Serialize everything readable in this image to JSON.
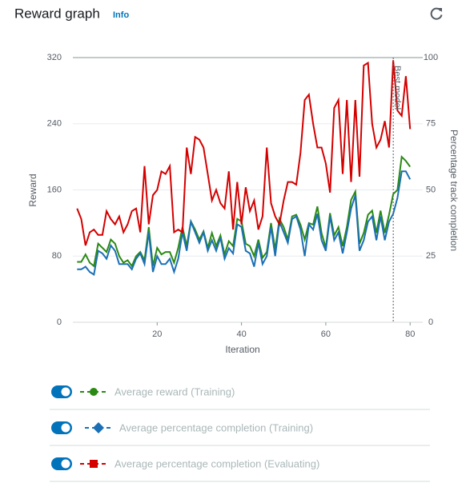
{
  "header": {
    "title": "Reward graph",
    "info": "Info"
  },
  "chart_data": {
    "type": "line",
    "xlabel": "Iteration",
    "ylabel": "Reward",
    "y2label": "Percentage track completion",
    "x": [
      1,
      2,
      3,
      4,
      5,
      6,
      7,
      8,
      9,
      10,
      11,
      12,
      13,
      14,
      15,
      16,
      17,
      18,
      19,
      20,
      21,
      22,
      23,
      24,
      25,
      26,
      27,
      28,
      29,
      30,
      31,
      32,
      33,
      34,
      35,
      36,
      37,
      38,
      39,
      40,
      41,
      42,
      43,
      44,
      45,
      46,
      47,
      48,
      49,
      50,
      51,
      52,
      53,
      54,
      55,
      56,
      57,
      58,
      59,
      60,
      61,
      62,
      63,
      64,
      65,
      66,
      67,
      68,
      69,
      70,
      71,
      72,
      73,
      74,
      75,
      76,
      77,
      78,
      79,
      80
    ],
    "xlim": [
      0,
      83
    ],
    "xticks": [
      20,
      40,
      60,
      80
    ],
    "ylim": [
      0,
      320
    ],
    "yticks": [
      0,
      80,
      160,
      240,
      320
    ],
    "y2lim": [
      0,
      100
    ],
    "y2ticks": [
      0,
      25,
      50,
      75,
      100
    ],
    "grid": true,
    "series": [
      {
        "name": "Average reward (Training)",
        "color": "#2b8a14",
        "marker": "circle",
        "axis": "y",
        "values": [
          73,
          73,
          82,
          72,
          68,
          95,
          90,
          85,
          100,
          95,
          80,
          72,
          75,
          68,
          80,
          85,
          75,
          115,
          68,
          90,
          82,
          85,
          85,
          72,
          90,
          115,
          92,
          122,
          112,
          100,
          110,
          90,
          108,
          92,
          105,
          82,
          98,
          92,
          125,
          122,
          95,
          92,
          80,
          100,
          78,
          85,
          120,
          88,
          125,
          115,
          100,
          128,
          130,
          118,
          100,
          120,
          118,
          140,
          108,
          90,
          132,
          105,
          115,
          92,
          115,
          148,
          158,
          95,
          108,
          130,
          135,
          108,
          135,
          108,
          130,
          155,
          160,
          200,
          195,
          188
        ]
      },
      {
        "name": "Average percentage completion (Training)",
        "color": "#1b70b5",
        "marker": "diamond",
        "axis": "y2",
        "values": [
          20,
          20,
          21,
          19,
          18,
          27,
          26,
          24,
          29,
          27,
          22,
          22,
          22,
          20,
          24,
          26,
          22,
          34,
          19,
          25,
          22,
          22,
          24,
          19,
          24,
          34,
          27,
          38,
          34,
          30,
          34,
          27,
          31,
          27,
          32,
          24,
          28,
          26,
          37,
          36,
          27,
          26,
          21,
          30,
          22,
          25,
          36,
          25,
          38,
          34,
          30,
          39,
          40,
          35,
          25,
          37,
          35,
          41,
          31,
          27,
          40,
          31,
          34,
          26,
          34,
          43,
          48,
          27,
          31,
          38,
          40,
          31,
          40,
          31,
          38,
          41,
          47,
          57,
          57,
          54
        ]
      },
      {
        "name": "Average percentage completion (Evaluating)",
        "color": "#d40000",
        "marker": "square",
        "axis": "y2",
        "values": [
          43,
          39,
          29,
          34,
          35,
          33,
          33,
          42,
          39,
          37,
          40,
          34,
          37,
          42,
          43,
          34,
          59,
          37,
          48,
          50,
          57,
          56,
          59,
          34,
          35,
          34,
          66,
          56,
          70,
          69,
          66,
          56,
          46,
          50,
          45,
          43,
          57,
          35,
          53,
          37,
          51,
          42,
          46,
          35,
          40,
          66,
          45,
          40,
          37,
          46,
          53,
          53,
          52,
          64,
          84,
          86,
          75,
          66,
          66,
          60,
          49,
          81,
          84,
          56,
          84,
          53,
          84,
          55,
          97,
          98,
          75,
          66,
          69,
          76,
          66,
          99,
          80,
          78,
          93,
          73
        ]
      }
    ],
    "annotation": {
      "text": "Best model",
      "x": 76
    },
    "legend": "bottom"
  }
}
